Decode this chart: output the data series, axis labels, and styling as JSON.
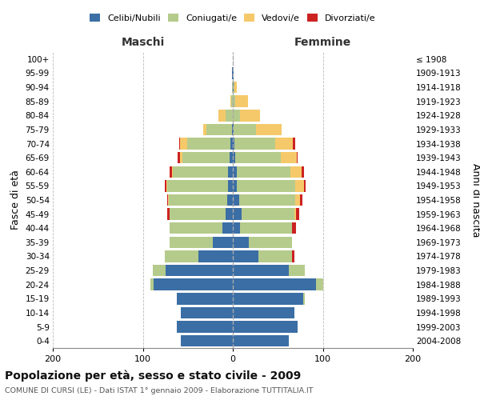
{
  "age_groups": [
    "0-4",
    "5-9",
    "10-14",
    "15-19",
    "20-24",
    "25-29",
    "30-34",
    "35-39",
    "40-44",
    "45-49",
    "50-54",
    "55-59",
    "60-64",
    "65-69",
    "70-74",
    "75-79",
    "80-84",
    "85-89",
    "90-94",
    "95-99",
    "100+"
  ],
  "birth_years": [
    "2004-2008",
    "1999-2003",
    "1994-1998",
    "1989-1993",
    "1984-1988",
    "1979-1983",
    "1974-1978",
    "1969-1973",
    "1964-1968",
    "1959-1963",
    "1954-1958",
    "1949-1953",
    "1944-1948",
    "1939-1943",
    "1934-1938",
    "1929-1933",
    "1924-1928",
    "1919-1923",
    "1914-1918",
    "1909-1913",
    "≤ 1908"
  ],
  "colors": {
    "celibi": "#3b6ea5",
    "coniugati": "#b5cb8b",
    "vedovi": "#f5c96a",
    "divorziati": "#cc2222"
  },
  "males": {
    "celibi": [
      58,
      62,
      58,
      62,
      88,
      75,
      38,
      22,
      12,
      8,
      6,
      5,
      5,
      4,
      3,
      1,
      0,
      0,
      0,
      1,
      0
    ],
    "coniugati": [
      0,
      0,
      0,
      0,
      4,
      14,
      38,
      48,
      58,
      62,
      65,
      68,
      62,
      52,
      48,
      28,
      8,
      2,
      1,
      0,
      0
    ],
    "vedovi": [
      0,
      0,
      0,
      0,
      0,
      0,
      0,
      0,
      0,
      0,
      1,
      1,
      1,
      3,
      8,
      4,
      8,
      1,
      0,
      0,
      0
    ],
    "divorziati": [
      0,
      0,
      0,
      0,
      0,
      0,
      0,
      0,
      0,
      3,
      1,
      2,
      2,
      2,
      1,
      0,
      0,
      0,
      0,
      0,
      0
    ]
  },
  "females": {
    "celibi": [
      62,
      72,
      68,
      78,
      92,
      62,
      28,
      18,
      8,
      10,
      7,
      4,
      4,
      3,
      2,
      1,
      0,
      0,
      1,
      1,
      0
    ],
    "coniugati": [
      0,
      0,
      0,
      2,
      8,
      18,
      38,
      48,
      58,
      58,
      62,
      65,
      60,
      50,
      45,
      25,
      8,
      3,
      1,
      0,
      0
    ],
    "vedovi": [
      0,
      0,
      0,
      0,
      0,
      0,
      0,
      0,
      0,
      2,
      6,
      10,
      12,
      18,
      20,
      28,
      22,
      14,
      2,
      0,
      0
    ],
    "divorziati": [
      0,
      0,
      0,
      0,
      0,
      0,
      2,
      0,
      4,
      4,
      2,
      2,
      3,
      1,
      2,
      0,
      0,
      0,
      0,
      0,
      0
    ]
  },
  "title": "Popolazione per età, sesso e stato civile - 2009",
  "subtitle": "COMUNE DI CURSI (LE) - Dati ISTAT 1° gennaio 2009 - Elaborazione TUTTITALIA.IT",
  "xlabel_left": "Maschi",
  "xlabel_right": "Femmine",
  "ylabel_left": "Fasce di età",
  "ylabel_right": "Anni di nascita",
  "xlim": 200,
  "background_color": "#ffffff",
  "grid_color": "#bbbbbb"
}
